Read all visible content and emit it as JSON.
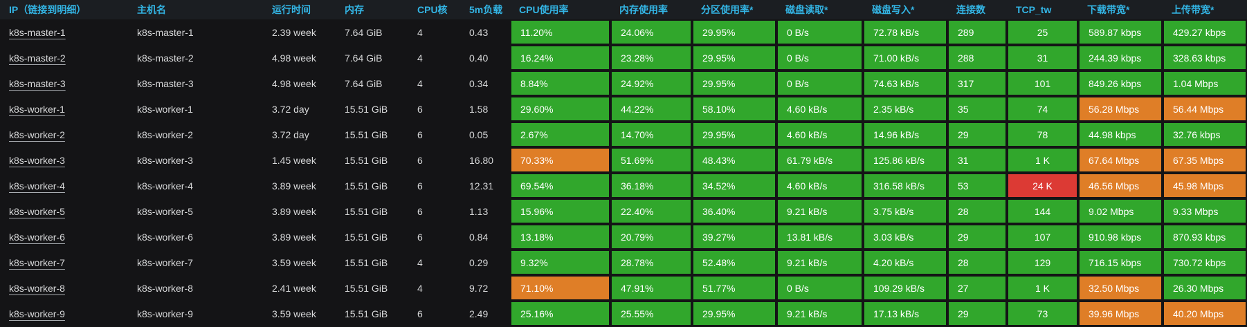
{
  "colors": {
    "green": "#31A72C",
    "orange": "#DF7E27",
    "red": "#DC3A34",
    "header_text": "#33B5E5",
    "header_bg": "#1B1E22",
    "background": "#141416",
    "cell_text": "#FFFFFF",
    "body_text": "#D8D9DA"
  },
  "table": {
    "columns": [
      {
        "key": "ip",
        "label": "IP（链接到明细）",
        "type": "link"
      },
      {
        "key": "hostname",
        "label": "主机名",
        "type": "text"
      },
      {
        "key": "uptime",
        "label": "运行时间",
        "type": "text"
      },
      {
        "key": "memory",
        "label": "内存",
        "type": "text"
      },
      {
        "key": "cpu_cores",
        "label": "CPU核",
        "type": "text"
      },
      {
        "key": "load_5m",
        "label": "5m负载",
        "type": "text"
      },
      {
        "key": "cpu_usage",
        "label": "CPU使用率",
        "type": "metric"
      },
      {
        "key": "mem_usage",
        "label": "内存使用率",
        "type": "metric"
      },
      {
        "key": "partition_usage",
        "label": "分区使用率*",
        "type": "metric"
      },
      {
        "key": "disk_read",
        "label": "磁盘读取*",
        "type": "metric"
      },
      {
        "key": "disk_write",
        "label": "磁盘写入*",
        "type": "metric"
      },
      {
        "key": "connections",
        "label": "连接数",
        "type": "metric"
      },
      {
        "key": "tcp_tw",
        "label": "TCP_tw",
        "type": "metric",
        "align": "center"
      },
      {
        "key": "download_bw",
        "label": "下载带宽*",
        "type": "metric"
      },
      {
        "key": "upload_bw",
        "label": "上传带宽*",
        "type": "metric"
      }
    ],
    "rows": [
      {
        "values": [
          "k8s-master-1",
          "k8s-master-1",
          "2.39 week",
          "7.64 GiB",
          "4",
          "0.43",
          "11.20%",
          "24.06%",
          "29.95%",
          "0 B/s",
          "72.78 kB/s",
          "289",
          "25",
          "589.87 kbps",
          "429.27 kbps"
        ],
        "levels": {}
      },
      {
        "values": [
          "k8s-master-2",
          "k8s-master-2",
          "4.98 week",
          "7.64 GiB",
          "4",
          "0.40",
          "16.24%",
          "23.28%",
          "29.95%",
          "0 B/s",
          "71.00 kB/s",
          "288",
          "31",
          "244.39 kbps",
          "328.63 kbps"
        ],
        "levels": {}
      },
      {
        "values": [
          "k8s-master-3",
          "k8s-master-3",
          "4.98 week",
          "7.64 GiB",
          "4",
          "0.34",
          "8.84%",
          "24.92%",
          "29.95%",
          "0 B/s",
          "74.63 kB/s",
          "317",
          "101",
          "849.26 kbps",
          "1.04 Mbps"
        ],
        "levels": {}
      },
      {
        "values": [
          "k8s-worker-1",
          "k8s-worker-1",
          "3.72 day",
          "15.51 GiB",
          "6",
          "1.58",
          "29.60%",
          "44.22%",
          "58.10%",
          "4.60 kB/s",
          "2.35 kB/s",
          "35",
          "74",
          "56.28 Mbps",
          "56.44 Mbps"
        ],
        "levels": {
          "download_bw": "orange",
          "upload_bw": "orange"
        }
      },
      {
        "values": [
          "k8s-worker-2",
          "k8s-worker-2",
          "3.72 day",
          "15.51 GiB",
          "6",
          "0.05",
          "2.67%",
          "14.70%",
          "29.95%",
          "4.60 kB/s",
          "14.96 kB/s",
          "29",
          "78",
          "44.98 kbps",
          "32.76 kbps"
        ],
        "levels": {}
      },
      {
        "values": [
          "k8s-worker-3",
          "k8s-worker-3",
          "1.45 week",
          "15.51 GiB",
          "6",
          "16.80",
          "70.33%",
          "51.69%",
          "48.43%",
          "61.79 kB/s",
          "125.86 kB/s",
          "31",
          "1 K",
          "67.64 Mbps",
          "67.35 Mbps"
        ],
        "levels": {
          "cpu_usage": "orange",
          "download_bw": "orange",
          "upload_bw": "orange"
        }
      },
      {
        "values": [
          "k8s-worker-4",
          "k8s-worker-4",
          "3.89 week",
          "15.51 GiB",
          "6",
          "12.31",
          "69.54%",
          "36.18%",
          "34.52%",
          "4.60 kB/s",
          "316.58 kB/s",
          "53",
          "24 K",
          "46.56 Mbps",
          "45.98 Mbps"
        ],
        "levels": {
          "tcp_tw": "red",
          "download_bw": "orange",
          "upload_bw": "orange"
        }
      },
      {
        "values": [
          "k8s-worker-5",
          "k8s-worker-5",
          "3.89 week",
          "15.51 GiB",
          "6",
          "1.13",
          "15.96%",
          "22.40%",
          "36.40%",
          "9.21 kB/s",
          "3.75 kB/s",
          "28",
          "144",
          "9.02 Mbps",
          "9.33 Mbps"
        ],
        "levels": {}
      },
      {
        "values": [
          "k8s-worker-6",
          "k8s-worker-6",
          "3.89 week",
          "15.51 GiB",
          "6",
          "0.84",
          "13.18%",
          "20.79%",
          "39.27%",
          "13.81 kB/s",
          "3.03 kB/s",
          "29",
          "107",
          "910.98 kbps",
          "870.93 kbps"
        ],
        "levels": {}
      },
      {
        "values": [
          "k8s-worker-7",
          "k8s-worker-7",
          "3.59 week",
          "15.51 GiB",
          "4",
          "0.29",
          "9.32%",
          "28.78%",
          "52.48%",
          "9.21 kB/s",
          "4.20 kB/s",
          "28",
          "129",
          "716.15 kbps",
          "730.72 kbps"
        ],
        "levels": {}
      },
      {
        "values": [
          "k8s-worker-8",
          "k8s-worker-8",
          "2.41 week",
          "15.51 GiB",
          "4",
          "9.72",
          "71.10%",
          "47.91%",
          "51.77%",
          "0 B/s",
          "109.29 kB/s",
          "27",
          "1 K",
          "32.50 Mbps",
          "26.30 Mbps"
        ],
        "levels": {
          "cpu_usage": "orange",
          "download_bw": "orange"
        }
      },
      {
        "values": [
          "k8s-worker-9",
          "k8s-worker-9",
          "3.59 week",
          "15.51 GiB",
          "6",
          "2.49",
          "25.16%",
          "25.55%",
          "29.95%",
          "9.21 kB/s",
          "17.13 kB/s",
          "29",
          "73",
          "39.96 Mbps",
          "40.20 Mbps"
        ],
        "levels": {
          "download_bw": "orange",
          "upload_bw": "orange"
        }
      }
    ]
  }
}
